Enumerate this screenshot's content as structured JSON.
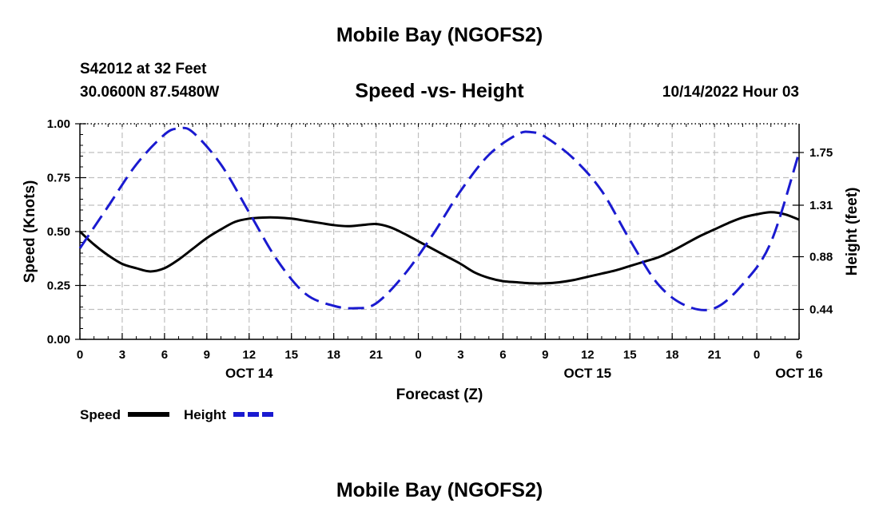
{
  "header": {
    "title": "Mobile Bay (NGOFS2)",
    "station": "S42012 at 32 Feet",
    "coordinates": "30.0600N  87.5480W",
    "datetime": "10/14/2022 Hour 03"
  },
  "footer": {
    "title": "Mobile Bay (NGOFS2)"
  },
  "colors": {
    "speed": "#000000",
    "height": "#1a1ad0",
    "grid": "#bfbfbf"
  },
  "chart_data": {
    "type": "line",
    "title": "Speed -vs- Height",
    "xlabel": "Forecast (Z)",
    "ylabel": "Speed (Knots)",
    "y2label": "Height (feet)",
    "x_range_hours": [
      0,
      51
    ],
    "x_ticks": [
      {
        "hour": 0,
        "label": "0"
      },
      {
        "hour": 3,
        "label": "3"
      },
      {
        "hour": 6,
        "label": "6"
      },
      {
        "hour": 9,
        "label": "9"
      },
      {
        "hour": 12,
        "label": "12"
      },
      {
        "hour": 15,
        "label": "15"
      },
      {
        "hour": 18,
        "label": "18"
      },
      {
        "hour": 21,
        "label": "21"
      },
      {
        "hour": 24,
        "label": "0"
      },
      {
        "hour": 27,
        "label": "3"
      },
      {
        "hour": 30,
        "label": "6"
      },
      {
        "hour": 33,
        "label": "9"
      },
      {
        "hour": 36,
        "label": "12"
      },
      {
        "hour": 39,
        "label": "15"
      },
      {
        "hour": 42,
        "label": "18"
      },
      {
        "hour": 45,
        "label": "21"
      },
      {
        "hour": 48,
        "label": "0"
      },
      {
        "hour": 51,
        "label": "6"
      }
    ],
    "date_labels": [
      {
        "hour": 12,
        "label": "OCT 14"
      },
      {
        "hour": 36,
        "label": "OCT 15"
      },
      {
        "hour": 51,
        "label": "OCT 16"
      }
    ],
    "ylim": [
      0,
      1.0
    ],
    "y_ticks": [
      {
        "value": 0.0,
        "label": "0.00"
      },
      {
        "value": 0.25,
        "label": "0.25"
      },
      {
        "value": 0.5,
        "label": "0.50"
      },
      {
        "value": 0.75,
        "label": "0.75"
      },
      {
        "value": 1.0,
        "label": "1.00"
      }
    ],
    "y2lim": [
      0.19,
      1.99
    ],
    "y2_ticks": [
      {
        "value": 0.44,
        "label": "0.44"
      },
      {
        "value": 0.88,
        "label": "0.88"
      },
      {
        "value": 1.31,
        "label": "1.31"
      },
      {
        "value": 1.75,
        "label": "1.75"
      }
    ],
    "series": [
      {
        "name": "Speed",
        "axis": "left",
        "style": "solid",
        "x": [
          0,
          1,
          2,
          3,
          4,
          5,
          6,
          7,
          8,
          9,
          10,
          11,
          12,
          13,
          14,
          15,
          16,
          17,
          18,
          19,
          20,
          21,
          22,
          23,
          24,
          25,
          26,
          27,
          28,
          29,
          30,
          31,
          32,
          33,
          34,
          35,
          36,
          37,
          38,
          39,
          40,
          41,
          42,
          43,
          44,
          45,
          46,
          47,
          48,
          49,
          50,
          51
        ],
        "values": [
          0.5,
          0.44,
          0.39,
          0.35,
          0.33,
          0.315,
          0.33,
          0.37,
          0.42,
          0.47,
          0.51,
          0.545,
          0.56,
          0.565,
          0.565,
          0.56,
          0.55,
          0.54,
          0.53,
          0.525,
          0.53,
          0.535,
          0.52,
          0.49,
          0.455,
          0.42,
          0.385,
          0.35,
          0.31,
          0.285,
          0.27,
          0.265,
          0.26,
          0.26,
          0.265,
          0.275,
          0.29,
          0.305,
          0.32,
          0.34,
          0.36,
          0.38,
          0.41,
          0.445,
          0.48,
          0.51,
          0.54,
          0.565,
          0.58,
          0.59,
          0.58,
          0.555
        ]
      },
      {
        "name": "Height",
        "axis": "right",
        "style": "dashed",
        "x": [
          0,
          2,
          4,
          6,
          7,
          8,
          10,
          12,
          14,
          16,
          18,
          19.5,
          21,
          23,
          25,
          27,
          29,
          31,
          32,
          33,
          35,
          37,
          39,
          41,
          43,
          45,
          47,
          49,
          51
        ],
        "values": [
          0.95,
          1.3,
          1.65,
          1.9,
          1.95,
          1.92,
          1.65,
          1.25,
          0.85,
          0.57,
          0.47,
          0.45,
          0.49,
          0.73,
          1.06,
          1.43,
          1.73,
          1.9,
          1.92,
          1.88,
          1.7,
          1.43,
          1.02,
          0.65,
          0.47,
          0.45,
          0.65,
          1.0,
          1.75
        ]
      }
    ],
    "legend": [
      {
        "label": "Speed",
        "style": "solid"
      },
      {
        "label": "Height",
        "style": "dashed"
      }
    ],
    "legend_position": "bottom-left",
    "grid": true
  }
}
